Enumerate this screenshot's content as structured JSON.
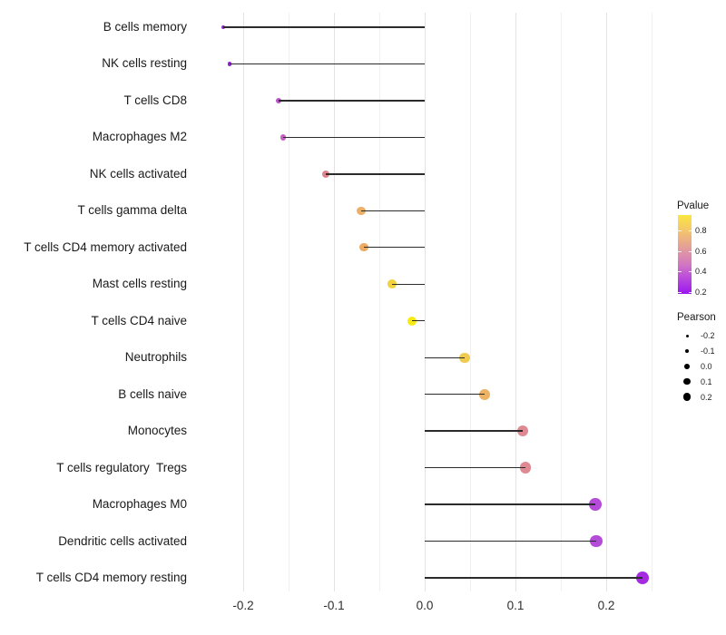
{
  "chart_data": {
    "type": "lollipop",
    "orientation": "horizontal",
    "title": "",
    "xlabel": "",
    "ylabel": "",
    "xlim": [
      -0.246,
      0.263
    ],
    "baseline": 0.0,
    "grid": "vertical-only",
    "x_major_ticks": [
      -0.2,
      -0.1,
      0.0,
      0.1,
      0.2
    ],
    "x_tick_labels": [
      "-0.2",
      "-0.1",
      "0.0",
      "0.1",
      "0.2"
    ],
    "x_minor_ticks": [
      -0.15,
      -0.05,
      0.05,
      0.15,
      0.25
    ],
    "stem_color": "#2b2b2b",
    "points": [
      {
        "label": "B cells memory",
        "pearson": -0.222,
        "pvalue": 0.22,
        "color": "#9728DB"
      },
      {
        "label": "NK cells resting",
        "pearson": -0.215,
        "pvalue": 0.24,
        "color": "#9322DE"
      },
      {
        "label": "T cells CD8",
        "pearson": -0.161,
        "pvalue": 0.38,
        "color": "#BA55C8"
      },
      {
        "label": "Macrophages M2",
        "pearson": -0.156,
        "pvalue": 0.42,
        "color": "#C45FC0"
      },
      {
        "label": "NK cells activated",
        "pearson": -0.109,
        "pvalue": 0.57,
        "color": "#DD848E"
      },
      {
        "label": "T cells gamma delta",
        "pearson": -0.07,
        "pvalue": 0.75,
        "color": "#EDAE66"
      },
      {
        "label": "T cells CD4 memory activated",
        "pearson": -0.067,
        "pvalue": 0.74,
        "color": "#ECAA62"
      },
      {
        "label": "Mast cells resting",
        "pearson": -0.036,
        "pvalue": 0.86,
        "color": "#F2D23E"
      },
      {
        "label": "T cells CD4 naive",
        "pearson": -0.014,
        "pvalue": 0.94,
        "color": "#F7EB13"
      },
      {
        "label": "Neutrophils",
        "pearson": 0.044,
        "pvalue": 0.84,
        "color": "#F0CB52"
      },
      {
        "label": "B cells naive",
        "pearson": 0.066,
        "pvalue": 0.76,
        "color": "#EDB364"
      },
      {
        "label": "Monocytes",
        "pearson": 0.108,
        "pvalue": 0.57,
        "color": "#DF8A93"
      },
      {
        "label": "T cells regulatory  Tregs",
        "pearson": 0.111,
        "pvalue": 0.56,
        "color": "#DF8A93"
      },
      {
        "label": "Macrophages M0",
        "pearson": 0.188,
        "pvalue": 0.33,
        "color": "#B54BD9"
      },
      {
        "label": "Dendritic cells activated",
        "pearson": 0.189,
        "pvalue": 0.33,
        "color": "#B54BD9"
      },
      {
        "label": "T cells CD4 memory resting",
        "pearson": 0.24,
        "pvalue": 0.25,
        "color": "#A52BE0"
      }
    ],
    "legends": {
      "pvalue": {
        "title": "Pvalue",
        "tick_values": [
          0.8,
          0.6,
          0.4,
          0.2
        ],
        "tick_labels": [
          "0.8",
          "0.6",
          "0.4",
          "0.2"
        ],
        "range": [
          0.18,
          0.95
        ],
        "gradient_top_to_bottom": [
          {
            "at": 0.0,
            "color": "#FAE73F"
          },
          {
            "at": 0.2,
            "color": "#F4C56C"
          },
          {
            "at": 0.46,
            "color": "#E095A2"
          },
          {
            "at": 0.62,
            "color": "#D378C1"
          },
          {
            "at": 0.78,
            "color": "#BC4FD9"
          },
          {
            "at": 1.0,
            "color": "#9C17F0"
          }
        ]
      },
      "pearson": {
        "title": "Pearson",
        "entry_values": [
          -0.2,
          -0.1,
          0.0,
          0.1,
          0.2
        ],
        "entry_labels": [
          "-0.2",
          "-0.1",
          "0.0",
          "0.1",
          "0.2"
        ],
        "key_color": "#000000"
      }
    }
  }
}
